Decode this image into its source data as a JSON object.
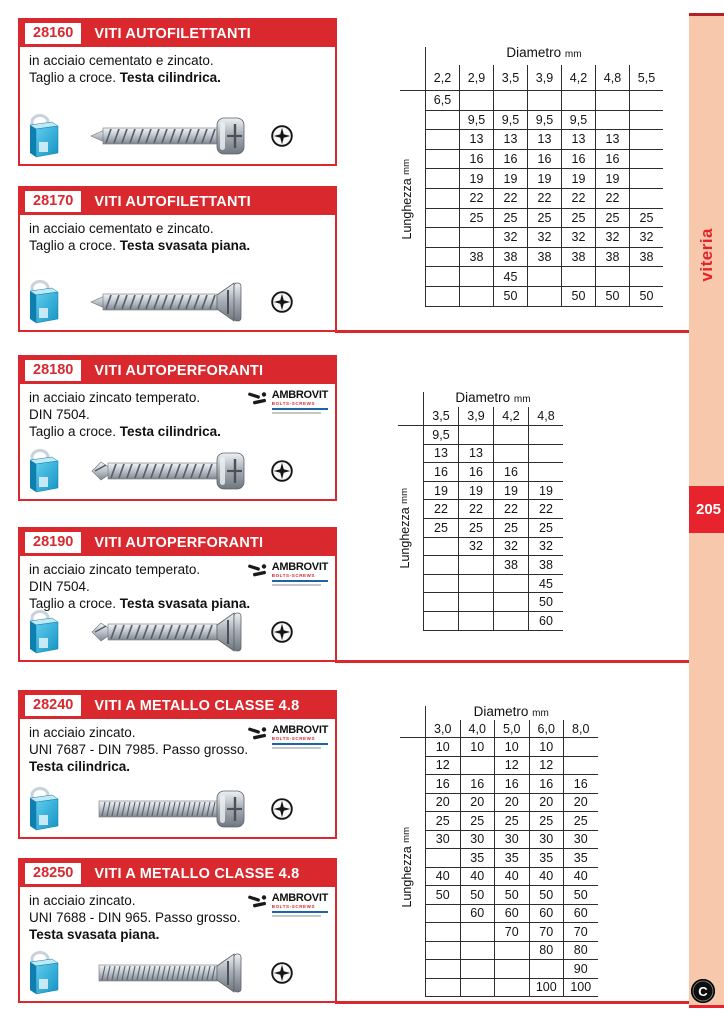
{
  "page": {
    "side_label": "viteria",
    "page_number": "205",
    "corner_mark": "C"
  },
  "logo": {
    "name": "AMBROVIT",
    "subtitle": "BOLTS-SCREWS"
  },
  "table_labels": {
    "col_header": "Diametro",
    "col_unit": "mm",
    "row_header": "Lunghezza",
    "row_unit": "mm"
  },
  "sections": [
    {
      "code": "28160",
      "title": "VITI AUTOFILETTANTI",
      "line1": "in acciaio cementato e zincato.",
      "line2": "",
      "line3_plain": "Taglio a croce. ",
      "line3_bold": "Testa cilindrica.",
      "has_logo": false
    },
    {
      "code": "28170",
      "title": "VITI AUTOFILETTANTI",
      "line1": "in acciaio cementato e zincato.",
      "line2": "",
      "line3_plain": "Taglio a croce. ",
      "line3_bold": "Testa svasata piana.",
      "has_logo": false
    },
    {
      "code": "28180",
      "title": "VITI AUTOPERFORANTI",
      "line1": "in acciaio zincato temperato.",
      "line2": "DIN 7504.",
      "line3_plain": "Taglio a croce. ",
      "line3_bold": "Testa cilindrica.",
      "has_logo": true
    },
    {
      "code": "28190",
      "title": "VITI AUTOPERFORANTI",
      "line1": "in acciaio zincato temperato.",
      "line2": "DIN 7504.",
      "line3_plain": "Taglio a croce. ",
      "line3_bold": "Testa svasata piana.",
      "has_logo": true
    },
    {
      "code": "28240",
      "title": "VITI A METALLO CLASSE 4.8",
      "line1": "in acciaio zincato.",
      "line2": "UNI 7687 - DIN 7985. Passo grosso.",
      "line3_plain": "",
      "line3_bold": "Testa cilindrica.",
      "has_logo": true
    },
    {
      "code": "28250",
      "title": "VITI A METALLO CLASSE 4.8",
      "line1": "in acciaio zincato.",
      "line2": "UNI 7688 - DIN 965. Passo grosso.",
      "line3_plain": "",
      "line3_bold": "Testa svasata piana.",
      "has_logo": true
    }
  ],
  "tables": [
    {
      "columns": [
        "2,2",
        "2,9",
        "3,5",
        "3,9",
        "4,2",
        "4,8",
        "5,5"
      ],
      "rows": [
        [
          "6,5",
          "",
          "",
          "",
          "",
          "",
          ""
        ],
        [
          "",
          "9,5",
          "9,5",
          "9,5",
          "9,5",
          "",
          ""
        ],
        [
          "",
          "13",
          "13",
          "13",
          "13",
          "13",
          ""
        ],
        [
          "",
          "16",
          "16",
          "16",
          "16",
          "16",
          ""
        ],
        [
          "",
          "19",
          "19",
          "19",
          "19",
          "19",
          ""
        ],
        [
          "",
          "22",
          "22",
          "22",
          "22",
          "22",
          ""
        ],
        [
          "",
          "25",
          "25",
          "25",
          "25",
          "25",
          "25"
        ],
        [
          "",
          "",
          "32",
          "32",
          "32",
          "32",
          "32"
        ],
        [
          "",
          "38",
          "38",
          "38",
          "38",
          "38",
          "38"
        ],
        [
          "",
          "",
          "45",
          "",
          "",
          "",
          ""
        ],
        [
          "",
          "",
          "50",
          "",
          "50",
          "50",
          "50"
        ]
      ]
    },
    {
      "columns": [
        "3,5",
        "3,9",
        "4,2",
        "4,8"
      ],
      "rows": [
        [
          "9,5",
          "",
          "",
          ""
        ],
        [
          "13",
          "13",
          "",
          ""
        ],
        [
          "16",
          "16",
          "16",
          ""
        ],
        [
          "19",
          "19",
          "19",
          "19"
        ],
        [
          "22",
          "22",
          "22",
          "22"
        ],
        [
          "25",
          "25",
          "25",
          "25"
        ],
        [
          "",
          "32",
          "32",
          "32"
        ],
        [
          "",
          "",
          "38",
          "38"
        ],
        [
          "",
          "",
          "",
          "45"
        ],
        [
          "",
          "",
          "",
          "50"
        ],
        [
          "",
          "",
          "",
          "60"
        ]
      ]
    },
    {
      "columns": [
        "3,0",
        "4,0",
        "5,0",
        "6,0",
        "8,0"
      ],
      "rows": [
        [
          "10",
          "10",
          "10",
          "10",
          ""
        ],
        [
          "12",
          "",
          "12",
          "12",
          ""
        ],
        [
          "16",
          "16",
          "16",
          "16",
          "16"
        ],
        [
          "20",
          "20",
          "20",
          "20",
          "20"
        ],
        [
          "25",
          "25",
          "25",
          "25",
          "25"
        ],
        [
          "30",
          "30",
          "30",
          "30",
          "30"
        ],
        [
          "",
          "35",
          "35",
          "35",
          "35"
        ],
        [
          "40",
          "40",
          "40",
          "40",
          "40"
        ],
        [
          "50",
          "50",
          "50",
          "50",
          "50"
        ],
        [
          "",
          "60",
          "60",
          "60",
          "60"
        ],
        [
          "",
          "",
          "70",
          "70",
          "70"
        ],
        [
          "",
          "",
          "",
          "80",
          "80"
        ],
        [
          "",
          "",
          "",
          "",
          "90"
        ],
        [
          "",
          "",
          "",
          "100",
          "100"
        ]
      ]
    }
  ],
  "colors": {
    "red": "#d9282e",
    "badge_red": "#e7232e",
    "salmon": "#f8c8ad",
    "dark_red": "#b32025"
  }
}
